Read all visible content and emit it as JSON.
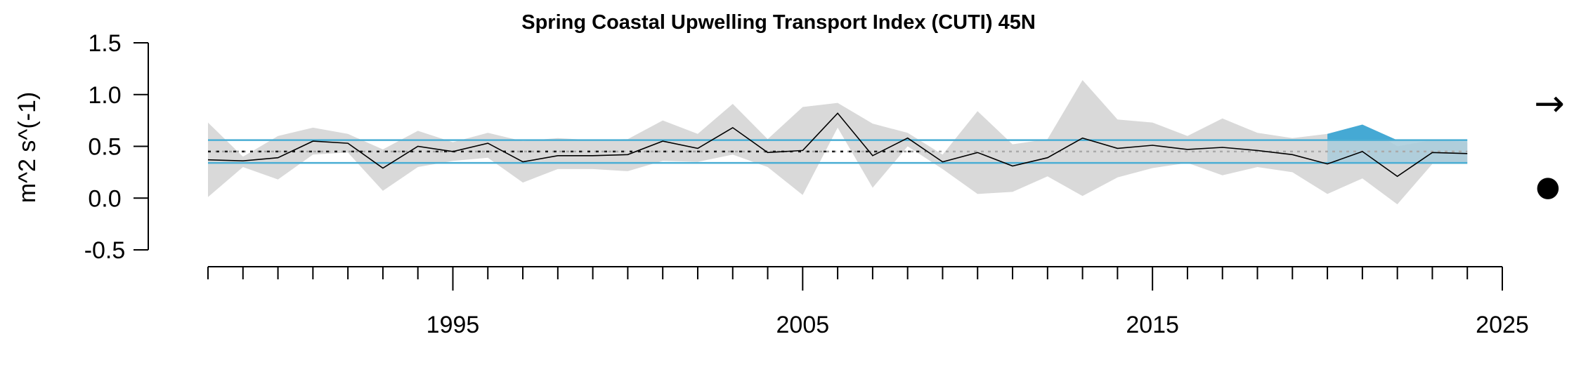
{
  "chart_data": {
    "type": "line",
    "title": "Spring Coastal Upwelling Transport Index (CUTI) 45N",
    "xlabel": "",
    "ylabel": "m^2 s^(-1)",
    "xlim": [
      1988,
      2025
    ],
    "ylim": [
      -0.5,
      1.5
    ],
    "yticks": [
      -0.5,
      0.0,
      0.5,
      1.0,
      1.5
    ],
    "ytick_labels": [
      "-0.5",
      "0.0",
      "0.5",
      "1.0",
      "1.5"
    ],
    "xticks_major": [
      1995,
      2005,
      2015,
      2025
    ],
    "xtick_labels": [
      "1995",
      "2005",
      "2015",
      "2025"
    ],
    "xticks_minor_range": [
      1988,
      2025
    ],
    "grid": false,
    "x": [
      1988,
      1989,
      1990,
      1991,
      1992,
      1993,
      1994,
      1995,
      1996,
      1997,
      1998,
      1999,
      2000,
      2001,
      2002,
      2003,
      2004,
      2005,
      2006,
      2007,
      2008,
      2009,
      2010,
      2011,
      2012,
      2013,
      2014,
      2015,
      2016,
      2017,
      2018,
      2019,
      2020,
      2021,
      2022,
      2023,
      2024
    ],
    "series": [
      {
        "role": "value",
        "color": "#000000",
        "values": [
          0.37,
          0.36,
          0.39,
          0.55,
          0.53,
          0.29,
          0.5,
          0.45,
          0.53,
          0.35,
          0.41,
          0.41,
          0.42,
          0.55,
          0.48,
          0.68,
          0.44,
          0.46,
          0.82,
          0.41,
          0.58,
          0.35,
          0.44,
          0.31,
          0.39,
          0.58,
          0.48,
          0.51,
          0.47,
          0.49,
          0.46,
          0.42,
          0.33,
          0.45,
          0.21,
          0.44,
          0.43
        ]
      }
    ],
    "error_band": {
      "color": "#d9d9d9",
      "upper": [
        0.73,
        0.4,
        0.6,
        0.68,
        0.62,
        0.47,
        0.65,
        0.54,
        0.63,
        0.55,
        0.58,
        0.56,
        0.57,
        0.75,
        0.62,
        0.91,
        0.57,
        0.88,
        0.92,
        0.72,
        0.63,
        0.42,
        0.84,
        0.52,
        0.57,
        1.14,
        0.76,
        0.73,
        0.6,
        0.77,
        0.63,
        0.58,
        0.62,
        0.71,
        0.5,
        0.56,
        0.54
      ],
      "lower": [
        0.01,
        0.3,
        0.18,
        0.42,
        0.44,
        0.07,
        0.3,
        0.36,
        0.39,
        0.15,
        0.28,
        0.28,
        0.26,
        0.36,
        0.35,
        0.42,
        0.3,
        0.03,
        0.68,
        0.1,
        0.5,
        0.28,
        0.04,
        0.06,
        0.21,
        0.02,
        0.2,
        0.29,
        0.34,
        0.22,
        0.3,
        0.25,
        0.04,
        0.19,
        -0.06,
        0.33,
        0.33
      ]
    },
    "reference_lines": {
      "mean": 0.45,
      "upper_sd": 0.56,
      "lower_sd": 0.34,
      "sd_line_color": "#4aaed4",
      "mean_line_color_early": "#000000",
      "mean_line_color_recent": "#aaaaaa"
    },
    "recent_window": {
      "start": 2020,
      "end": 2024,
      "fill_color": "#a8cbdb",
      "above_fill_color": "#45a9d4"
    },
    "indicators": {
      "trend_symbol": "→",
      "mean_symbol": "●"
    }
  }
}
